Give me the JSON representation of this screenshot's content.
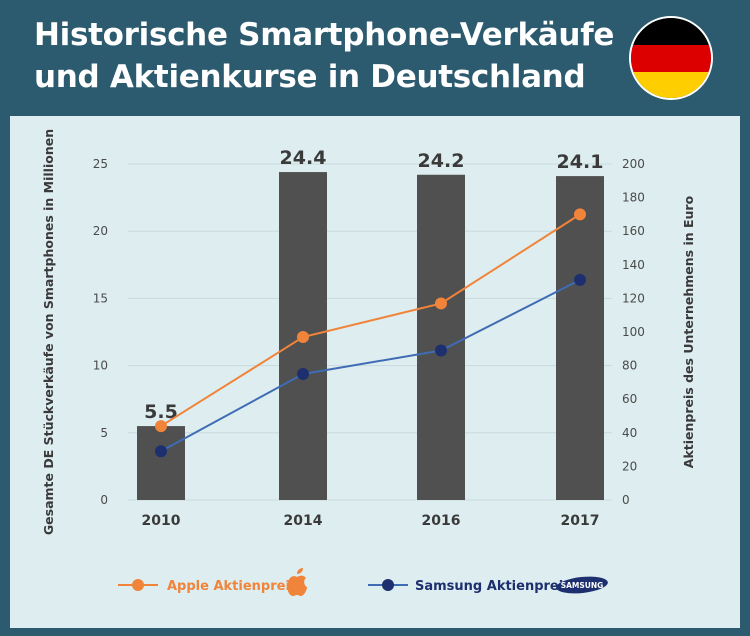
{
  "header": {
    "title_line1": "Historische Smartphone-Verkäufe",
    "title_line2": "und Aktienkurse in Deutschland"
  },
  "flag": {
    "icon": "germany-flag-icon",
    "colors": [
      "#000000",
      "#dd0000",
      "#ffce00"
    ]
  },
  "colors": {
    "background": "#2c5a6e",
    "panel": "#deeef0",
    "bar": "#505050",
    "apple": "#f0843a",
    "samsung": "#3f6cb4",
    "samsung_marker": "#1d2f6e",
    "grid": "#c7dadd"
  },
  "chart_data": {
    "type": "bar+line",
    "categories": [
      "2010",
      "2014",
      "2016",
      "2017"
    ],
    "bars": {
      "values": [
        5.5,
        24.4,
        24.2,
        24.1
      ],
      "labels": [
        "5.5",
        "24.4",
        "24.2",
        "24.1"
      ]
    },
    "series": [
      {
        "name": "Apple Aktienpreis",
        "axis": "right",
        "values": [
          44,
          97,
          117,
          170
        ],
        "icon": "apple-logo-icon"
      },
      {
        "name": "Samsung Aktienpreis",
        "axis": "right",
        "values": [
          29,
          75,
          89,
          131
        ],
        "icon": "samsung-logo-icon",
        "icon_text": "SAMSUNG"
      }
    ],
    "ylabel": "Gesamte DE Stückverkäufe von Smartphones in Millionen",
    "y2label": "Aktienpreis des Unternehmens in Euro",
    "ylim": [
      0,
      25
    ],
    "y2lim": [
      0,
      200
    ],
    "yticks": [
      0,
      5,
      10,
      15,
      20,
      25
    ],
    "y2ticks": [
      0,
      20,
      40,
      60,
      80,
      100,
      120,
      140,
      160,
      180,
      200
    ],
    "grid": true,
    "legend_position": "bottom"
  }
}
